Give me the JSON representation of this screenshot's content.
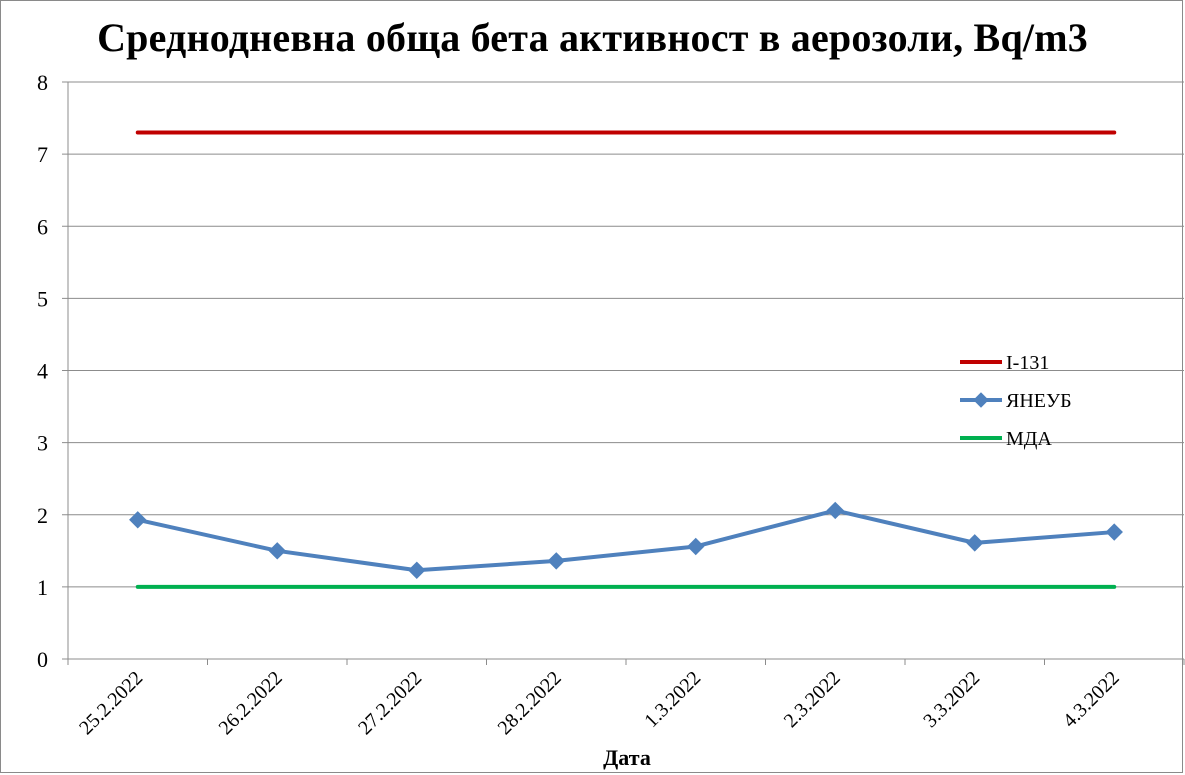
{
  "chart_data": {
    "type": "line",
    "title": "Среднодневна обща бета активност в аерозоли, Bq/m3",
    "xlabel": "Дата",
    "ylabel": "",
    "ylim": [
      0,
      8
    ],
    "yticks": [
      0,
      1,
      2,
      3,
      4,
      5,
      6,
      7,
      8
    ],
    "grid": true,
    "legend_position": "right",
    "categories": [
      "25.2.2022",
      "26.2.2022",
      "27.2.2022",
      "28.2.2022",
      "1.3.2022",
      "2.3.2022",
      "3.3.2022",
      "4.3.2022"
    ],
    "series": [
      {
        "name": "I-131",
        "color": "#c00000",
        "marker": "none",
        "values": [
          7.3,
          7.3,
          7.3,
          7.3,
          7.3,
          7.3,
          7.3,
          7.3
        ]
      },
      {
        "name": "ЯНЕУБ",
        "color": "#4f81bd",
        "marker": "diamond",
        "values": [
          1.93,
          1.5,
          1.23,
          1.36,
          1.56,
          2.06,
          1.61,
          1.76
        ]
      },
      {
        "name": "МДА",
        "color": "#00b050",
        "marker": "none",
        "values": [
          1.0,
          1.0,
          1.0,
          1.0,
          1.0,
          1.0,
          1.0,
          1.0
        ]
      }
    ]
  }
}
